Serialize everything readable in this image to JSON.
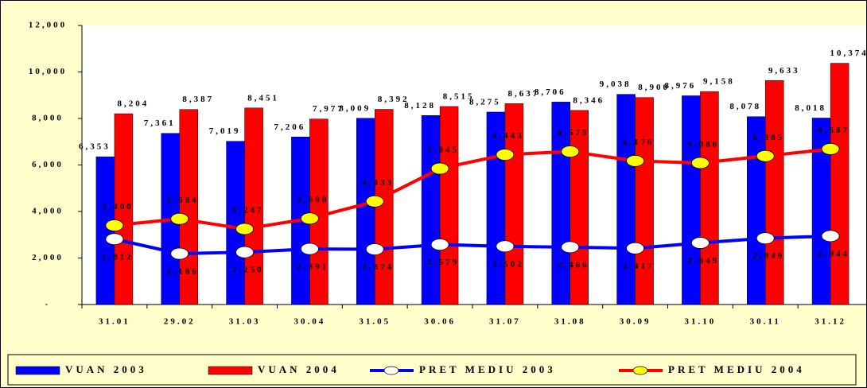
{
  "chart_data": {
    "type": "bar",
    "categories": [
      "31.01",
      "29.02",
      "31.03",
      "30.04",
      "31.05",
      "30.06",
      "31.07",
      "31.08",
      "30.09",
      "31.10",
      "30.11",
      "31.12"
    ],
    "ylim": [
      0,
      12000
    ],
    "yticks": [
      {
        "value": 0,
        "label": "-"
      },
      {
        "value": 2000,
        "label": "2,000"
      },
      {
        "value": 4000,
        "label": "4,000"
      },
      {
        "value": 6000,
        "label": "6,000"
      },
      {
        "value": 8000,
        "label": "8,000"
      },
      {
        "value": 10000,
        "label": "10,000"
      },
      {
        "value": 12000,
        "label": "12,000"
      }
    ],
    "legend": "bottom",
    "series": [
      {
        "name": "VUAN 2003",
        "type": "bar",
        "color": "#0000ff",
        "values": [
          6353,
          7361,
          7019,
          7206,
          8009,
          8128,
          8275,
          8706,
          9038,
          8976,
          8078,
          8018
        ],
        "value_labels": [
          "6,353",
          "7,361",
          "7,019",
          "7,206",
          "8,009",
          "8,128",
          "8,275",
          "8,706",
          "9,038",
          "8,976",
          "8,078",
          "8,018"
        ]
      },
      {
        "name": "VUAN 2004",
        "type": "bar",
        "color": "#ff0000",
        "values": [
          8204,
          8387,
          8451,
          7977,
          8392,
          8515,
          8637,
          8346,
          8900,
          9158,
          9633,
          10374
        ],
        "value_labels": [
          "8,204",
          "8,387",
          "8,451",
          "7,977",
          "8,392",
          "8,515",
          "8,637",
          "8,346",
          "8,900",
          "9,158",
          "9,633",
          "10,374"
        ]
      },
      {
        "name": "PRET MEDIU 2003",
        "type": "line",
        "color": "#0000ff",
        "marker": "#ffffff",
        "values": [
          2812,
          2186,
          2250,
          2391,
          2374,
          2579,
          2502,
          2466,
          2417,
          2649,
          2849,
          2944
        ],
        "value_labels": [
          "2,812",
          "2,186",
          "2,250",
          "2,391",
          "2,374",
          "2,579",
          "2,502",
          "2,466",
          "2,417",
          "2,649",
          "2,849",
          "2,944"
        ]
      },
      {
        "name": "PRET MEDIU 2004",
        "type": "line",
        "color": "#ff0000",
        "marker": "#ffff00",
        "values": [
          3400,
          3684,
          3247,
          3698,
          4433,
          5845,
          6443,
          6579,
          6176,
          6086,
          6385,
          6687
        ],
        "value_labels": [
          "3,400",
          "3,684",
          "3,247",
          "3,698",
          "4,433",
          "5,845",
          "6,443",
          "6,579",
          "6,176",
          "6,086",
          "6,385",
          "6,687"
        ]
      }
    ]
  }
}
